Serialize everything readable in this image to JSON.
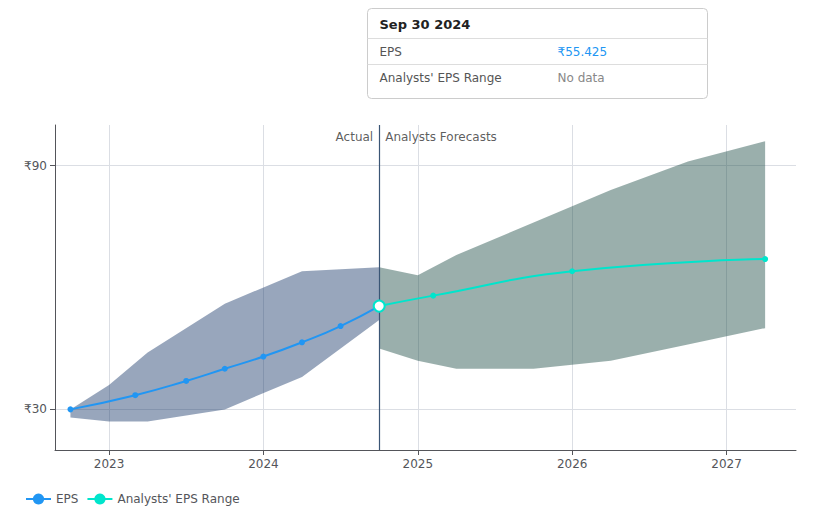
{
  "chart_data": {
    "type": "line",
    "series": [
      {
        "type": "band",
        "color": "#1a3a6b",
        "x": [
          2022.75,
          2023.0,
          2023.25,
          2023.75,
          2024.25,
          2024.75
        ],
        "upper": [
          30,
          36,
          44,
          56,
          64,
          65
        ],
        "lower": [
          28,
          27,
          27,
          30,
          38,
          52
        ]
      },
      {
        "type": "band",
        "color": "#1e4d47",
        "x": [
          2024.75,
          2025.0,
          2025.25,
          2025.75,
          2026.25,
          2026.75,
          2027.25
        ],
        "upper": [
          65,
          63,
          68,
          76,
          84,
          91,
          96
        ],
        "lower": [
          45,
          42,
          40,
          40,
          42,
          46,
          50
        ]
      },
      {
        "type": "line",
        "name": "EPS",
        "color": "#2196f3",
        "marker": "circle",
        "x": [
          2022.75,
          2023.17,
          2023.5,
          2023.75,
          2024.0,
          2024.25,
          2024.5,
          2024.75
        ],
        "values": [
          30,
          33.5,
          37,
          40,
          43,
          46.5,
          50.5,
          55.425
        ]
      },
      {
        "type": "line",
        "name": "Analysts' EPS Range",
        "color": "#00e5cc",
        "marker": "circle",
        "x": [
          2024.75,
          2025.1,
          2026.0,
          2027.25
        ],
        "values": [
          55.425,
          58,
          64,
          67
        ]
      }
    ],
    "vlines": [
      {
        "x": 2024.75,
        "color": "#3a5575"
      }
    ],
    "annotations": [
      {
        "text": "Actual",
        "x": 2024.75,
        "y": 97,
        "align": "right"
      },
      {
        "text": "Analysts Forecasts",
        "x": 2024.75,
        "y": 97,
        "align": "left"
      }
    ],
    "tooltip": {
      "title": "Sep 30 2024",
      "rows": [
        {
          "label": "EPS",
          "value": "₹55.425",
          "color": "#2196f3"
        },
        {
          "label": "Analysts' EPS Range",
          "value": "No data"
        }
      ]
    },
    "xlim": [
      2022.65,
      2027.45
    ],
    "xticks": [
      2023,
      2024,
      2025,
      2026,
      2027
    ],
    "ylim": [
      20,
      100
    ],
    "yticks": [
      {
        "value": 30,
        "label": "₹30"
      },
      {
        "value": 90,
        "label": "₹90"
      }
    ],
    "grid": true,
    "legend": "bottom left"
  }
}
